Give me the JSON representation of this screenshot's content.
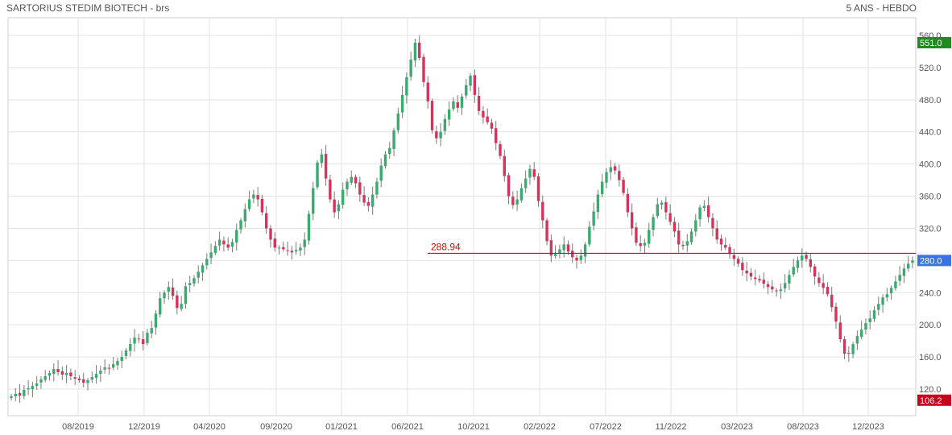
{
  "header": {
    "title": "SARTORIUS STEDIM BIOTECH - brs",
    "period": "5 ANS - HEBDO"
  },
  "chart_data": {
    "type": "candlestick",
    "title": "SARTORIUS STEDIM BIOTECH - brs",
    "subtitle": "5 ANS - HEBDO",
    "ylim": [
      100,
      570
    ],
    "y_ticks": [
      "560.0",
      "520.0",
      "480.0",
      "440.0",
      "400.0",
      "360.0",
      "320.0",
      "280.0",
      "240.0",
      "200.0",
      "160.0",
      "120.0"
    ],
    "x_ticks": [
      "08/2019",
      "12/2019",
      "04/2020",
      "09/2020",
      "01/2021",
      "06/2021",
      "10/2021",
      "02/2022",
      "07/2022",
      "11/2022",
      "03/2023",
      "08/2023",
      "12/2023"
    ],
    "reference_line": {
      "value": 288.94,
      "label": "288.94",
      "color": "#e00000"
    },
    "price_tags": [
      {
        "label": "551.0",
        "value": 551.0,
        "color": "#1e8c1e"
      },
      {
        "label": "280.0",
        "value": 280.0,
        "color": "#3b74e0"
      },
      {
        "label": "106.2",
        "value": 106.2,
        "color": "#c8001e"
      }
    ],
    "colors": {
      "up": "#3aaa6e",
      "down": "#d6335c",
      "grid": "#e3e3e3"
    },
    "closes_weekly_approx": [
      111,
      114,
      112,
      119,
      121,
      124,
      127,
      132,
      136,
      140,
      145,
      141,
      138,
      140,
      136,
      133,
      131,
      128,
      131,
      135,
      139,
      143,
      147,
      146,
      151,
      155,
      160,
      168,
      176,
      184,
      182,
      176,
      190,
      196,
      214,
      233,
      240,
      247,
      236,
      221,
      226,
      248,
      252,
      258,
      266,
      274,
      282,
      290,
      298,
      306,
      300,
      296,
      303,
      318,
      330,
      344,
      356,
      362,
      356,
      340,
      320,
      306,
      296,
      296,
      294,
      292,
      290,
      293,
      296,
      306,
      338,
      370,
      402,
      412,
      382,
      356,
      340,
      350,
      368,
      378,
      384,
      376,
      362,
      352,
      348,
      362,
      378,
      398,
      412,
      420,
      442,
      463,
      486,
      508,
      530,
      551,
      532,
      502,
      478,
      442,
      432,
      440,
      456,
      468,
      478,
      470,
      484,
      498,
      510,
      486,
      466,
      458,
      452,
      444,
      426,
      410,
      385,
      360,
      349,
      356,
      370,
      382,
      394,
      384,
      354,
      330,
      304,
      286,
      288,
      294,
      300,
      291,
      284,
      280,
      286,
      300,
      322,
      341,
      362,
      378,
      390,
      396,
      392,
      380,
      364,
      340,
      320,
      302,
      298,
      302,
      318,
      334,
      350,
      352,
      340,
      328,
      316,
      300,
      298,
      304,
      316,
      330,
      346,
      348,
      334,
      320,
      306,
      300,
      296,
      288,
      282,
      276,
      268,
      264,
      260,
      257,
      255,
      251,
      247,
      244,
      242,
      244,
      252,
      262,
      272,
      280,
      286,
      282,
      272,
      260,
      252,
      246,
      238,
      222,
      204,
      182,
      164,
      164,
      176,
      186,
      194,
      202,
      208,
      218,
      226,
      234,
      238,
      246,
      254,
      262,
      270,
      276,
      280
    ]
  }
}
